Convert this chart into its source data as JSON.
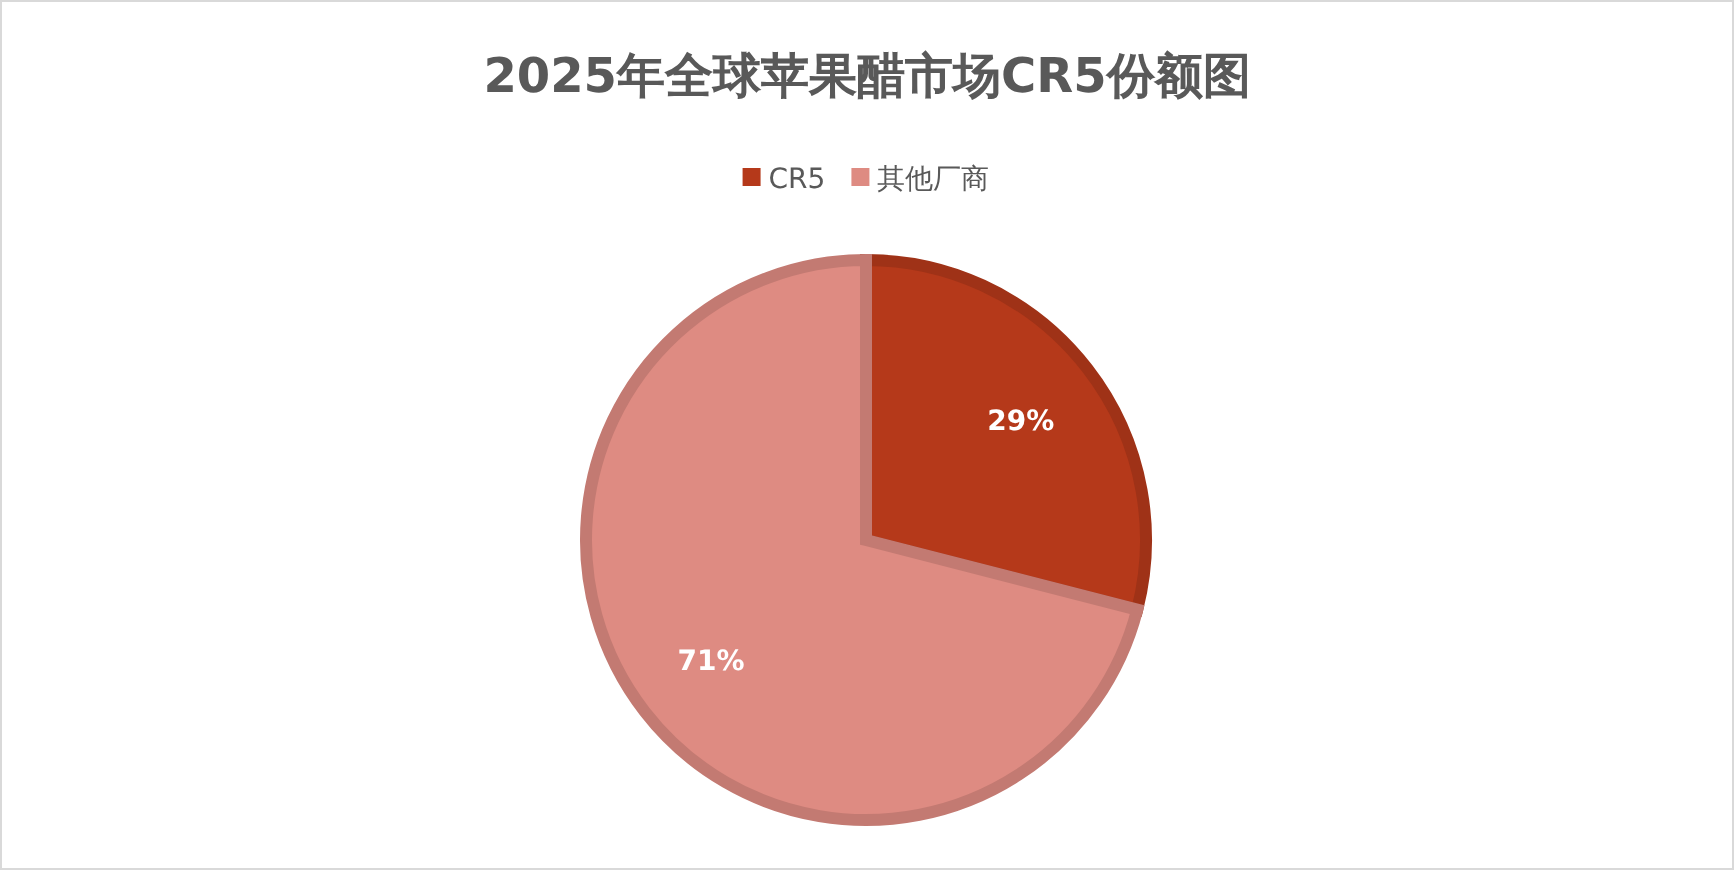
{
  "chart_data": {
    "type": "pie",
    "title": "2025年全球苹果醋市场CR5份额图",
    "categories": [
      "CR5",
      "其他厂商"
    ],
    "values": [
      29,
      71
    ],
    "colors": [
      "#b5391a",
      "#de8b82"
    ],
    "value_labels": [
      "29%",
      "71%"
    ],
    "legend": "top"
  }
}
